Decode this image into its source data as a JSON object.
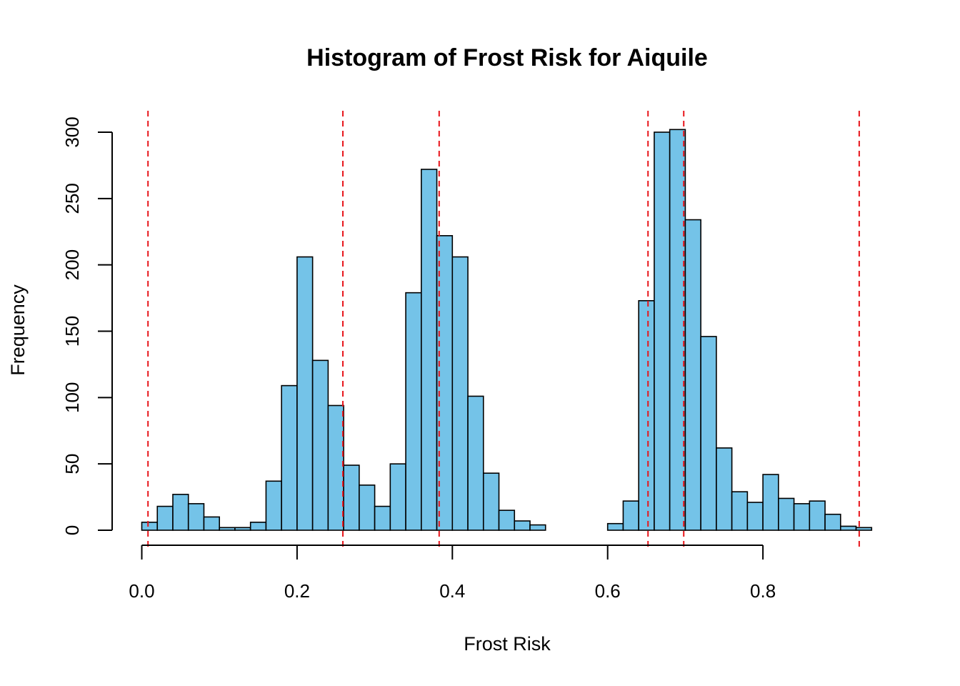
{
  "chart_data": {
    "type": "bar",
    "title": "Histogram of Frost Risk for Aiquile",
    "xlabel": "Frost Risk",
    "ylabel": "Frequency",
    "bin_width": 0.02,
    "x_start": 0.0,
    "xlim": [
      0.0,
      0.94
    ],
    "ylim": [
      0,
      315
    ],
    "x_ticks": [
      "0.0",
      "0.2",
      "0.4",
      "0.6",
      "0.8"
    ],
    "y_ticks": [
      "0",
      "50",
      "100",
      "150",
      "200",
      "250",
      "300"
    ],
    "values": [
      6,
      18,
      27,
      20,
      10,
      2,
      2,
      6,
      37,
      109,
      206,
      128,
      94,
      49,
      34,
      18,
      50,
      179,
      272,
      222,
      206,
      101,
      43,
      15,
      7,
      4,
      0,
      0,
      0,
      0,
      5,
      22,
      173,
      300,
      302,
      234,
      146,
      62,
      29,
      21,
      42,
      24,
      20,
      22,
      12,
      3,
      2
    ],
    "vlines": [
      0.008,
      0.259,
      0.383,
      0.652,
      0.698,
      0.924
    ],
    "bar_color": "#74c3e8",
    "bar_edge_color": "#000000",
    "vline_color": "#e8151b",
    "grid": false,
    "legend": "none"
  }
}
